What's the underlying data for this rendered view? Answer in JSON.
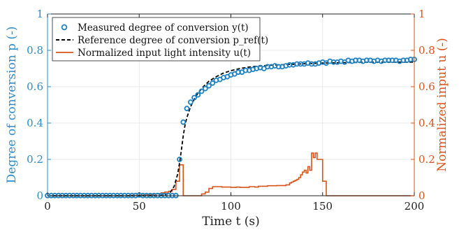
{
  "chart_data": {
    "type": "line",
    "xlabel": "Time t (s)",
    "ylabel_left": "Degree of conversion p (-)",
    "ylabel_right": "Normalized input u (-)",
    "xlim": [
      0,
      200
    ],
    "ylim_left": [
      0,
      1
    ],
    "ylim_right": [
      0,
      1
    ],
    "xticks": [
      "0",
      "50",
      "100",
      "150",
      "200"
    ],
    "yticks_left": [
      "0",
      "0.2",
      "0.4",
      "0.6",
      "0.8",
      "1"
    ],
    "yticks_right": [
      "0",
      "0.2",
      "0.4",
      "0.6",
      "0.8",
      "1"
    ],
    "grid": true,
    "legend_position": "top-left",
    "colors": {
      "measured": "#1f82c0",
      "reference": "#000000",
      "input": "#d95319",
      "axis_left": "#2e8bc8",
      "axis_right": "#d95319",
      "grid": "#e3e3e3"
    },
    "series": [
      {
        "name": "Measured degree of conversion y(t)",
        "style": "circle-markers",
        "axis": "left",
        "x": [
          0,
          2,
          4,
          6,
          8,
          10,
          12,
          14,
          16,
          18,
          20,
          22,
          24,
          26,
          28,
          30,
          32,
          34,
          36,
          38,
          40,
          42,
          44,
          46,
          48,
          50,
          52,
          54,
          56,
          58,
          60,
          62,
          64,
          66,
          68,
          70,
          72,
          74,
          76,
          78,
          80,
          82,
          84,
          86,
          88,
          90,
          92,
          94,
          96,
          98,
          100,
          102,
          104,
          106,
          108,
          110,
          112,
          114,
          116,
          118,
          120,
          122,
          124,
          126,
          128,
          130,
          132,
          134,
          136,
          138,
          140,
          142,
          144,
          146,
          148,
          150,
          152,
          154,
          156,
          158,
          160,
          162,
          164,
          166,
          168,
          170,
          172,
          174,
          176,
          178,
          180,
          182,
          184,
          186,
          188,
          190,
          192,
          194,
          196,
          198,
          200
        ],
        "y": [
          0.001,
          0.001,
          0.001,
          0.001,
          0.001,
          0.001,
          0.001,
          0.001,
          0.001,
          0.001,
          0.001,
          0.001,
          0.001,
          0.001,
          0.001,
          0.001,
          0.001,
          0.001,
          0.001,
          0.001,
          0.001,
          0.001,
          0.001,
          0.001,
          0.001,
          0.004,
          0.001,
          0.001,
          0.001,
          0.001,
          0.001,
          0.001,
          0.001,
          0.001,
          0.001,
          0.001,
          0.2,
          0.405,
          0.48,
          0.515,
          0.54,
          0.555,
          0.575,
          0.59,
          0.605,
          0.62,
          0.635,
          0.64,
          0.65,
          0.655,
          0.665,
          0.67,
          0.68,
          0.68,
          0.69,
          0.69,
          0.695,
          0.7,
          0.705,
          0.7,
          0.71,
          0.71,
          0.715,
          0.71,
          0.71,
          0.715,
          0.72,
          0.72,
          0.725,
          0.725,
          0.725,
          0.73,
          0.725,
          0.725,
          0.73,
          0.735,
          0.73,
          0.74,
          0.735,
          0.735,
          0.74,
          0.735,
          0.745,
          0.74,
          0.745,
          0.745,
          0.74,
          0.745,
          0.745,
          0.74,
          0.745,
          0.74,
          0.745,
          0.745,
          0.745,
          0.745,
          0.74,
          0.745,
          0.745,
          0.75,
          0.75
        ]
      },
      {
        "name": "Reference degree of conversion p_ref(t)",
        "style": "dashed",
        "axis": "left",
        "x": [
          0,
          60,
          64,
          67,
          69,
          71,
          72,
          73,
          74,
          75,
          76,
          77,
          78,
          80,
          82,
          85,
          88,
          92,
          96,
          100,
          105,
          110,
          115,
          120,
          125,
          130,
          135,
          140,
          145,
          150,
          160,
          170,
          180,
          190,
          200
        ],
        "y": [
          0,
          0,
          0.005,
          0.02,
          0.05,
          0.12,
          0.18,
          0.25,
          0.33,
          0.39,
          0.43,
          0.46,
          0.49,
          0.53,
          0.565,
          0.6,
          0.63,
          0.655,
          0.675,
          0.688,
          0.7,
          0.708,
          0.713,
          0.717,
          0.72,
          0.722,
          0.724,
          0.726,
          0.728,
          0.73,
          0.732,
          0.734,
          0.735,
          0.735,
          0.735
        ]
      },
      {
        "name": "Normalized input light intensity u(t)",
        "style": "step",
        "axis": "right",
        "x": [
          0,
          45,
          50,
          52,
          54,
          56,
          58,
          60,
          62,
          64,
          66,
          68,
          70,
          72,
          74,
          84,
          86,
          88,
          90,
          95,
          100,
          103,
          105,
          110,
          113,
          115,
          120,
          125,
          130,
          131,
          132,
          133,
          134,
          135,
          136,
          137,
          138,
          139,
          140,
          141,
          142,
          143,
          144,
          145,
          146,
          147,
          148,
          150,
          152,
          200
        ],
        "y": [
          0,
          0.002,
          0.003,
          0.004,
          0.005,
          0.006,
          0.01,
          0.012,
          0.016,
          0.02,
          0.025,
          0.035,
          0.08,
          0.17,
          0,
          0.01,
          0.02,
          0.04,
          0.05,
          0.048,
          0.046,
          0.048,
          0.046,
          0.05,
          0.048,
          0.052,
          0.055,
          0.056,
          0.06,
          0.06,
          0.07,
          0.075,
          0.08,
          0.085,
          0.09,
          0.1,
          0.115,
          0.13,
          0.14,
          0.125,
          0.16,
          0.14,
          0.235,
          0.21,
          0.235,
          0.2,
          0.2,
          0.08,
          0,
          0
        ]
      }
    ]
  }
}
